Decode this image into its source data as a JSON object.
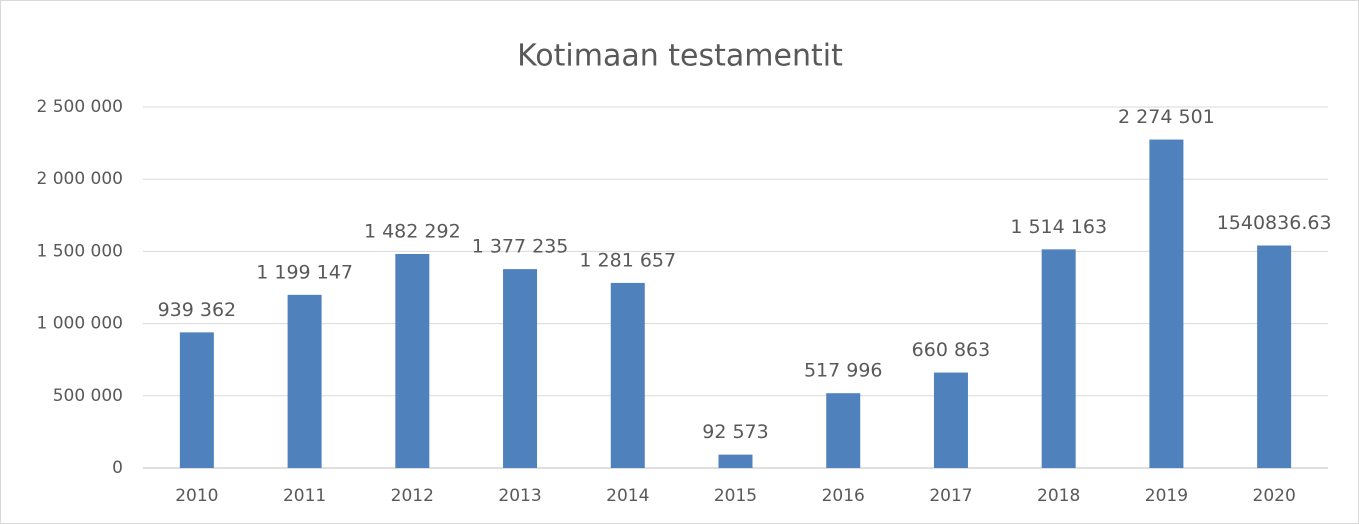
{
  "chart_data": {
    "type": "bar",
    "title": "Kotimaan testamentit",
    "categories": [
      "2010",
      "2011",
      "2012",
      "2013",
      "2014",
      "2015",
      "2016",
      "2017",
      "2018",
      "2019",
      "2020"
    ],
    "values": [
      939362,
      1199147,
      1482292,
      1377235,
      1281657,
      92573,
      517996,
      660863,
      1514163,
      2274501,
      1540836.63
    ],
    "value_labels": [
      "939 362",
      "1 199 147",
      "1 482 292",
      "1 377 235",
      "1 281 657",
      "92 573",
      "517 996",
      "660 863",
      "1 514 163",
      "2 274 501",
      "1540836.63"
    ],
    "color": "#4f81bd",
    "ylim": [
      0,
      2500000
    ],
    "yticks": [
      0,
      {
        "value": 500000,
        "label": "500 000"
      },
      {
        "value": 1000000,
        "label": "1 000 000"
      },
      {
        "value": 1500000,
        "label": "1 500 000"
      },
      {
        "value": 2000000,
        "label": "2 000 000"
      },
      {
        "value": 2500000,
        "label": "2 500 000"
      }
    ],
    "grid": true
  }
}
